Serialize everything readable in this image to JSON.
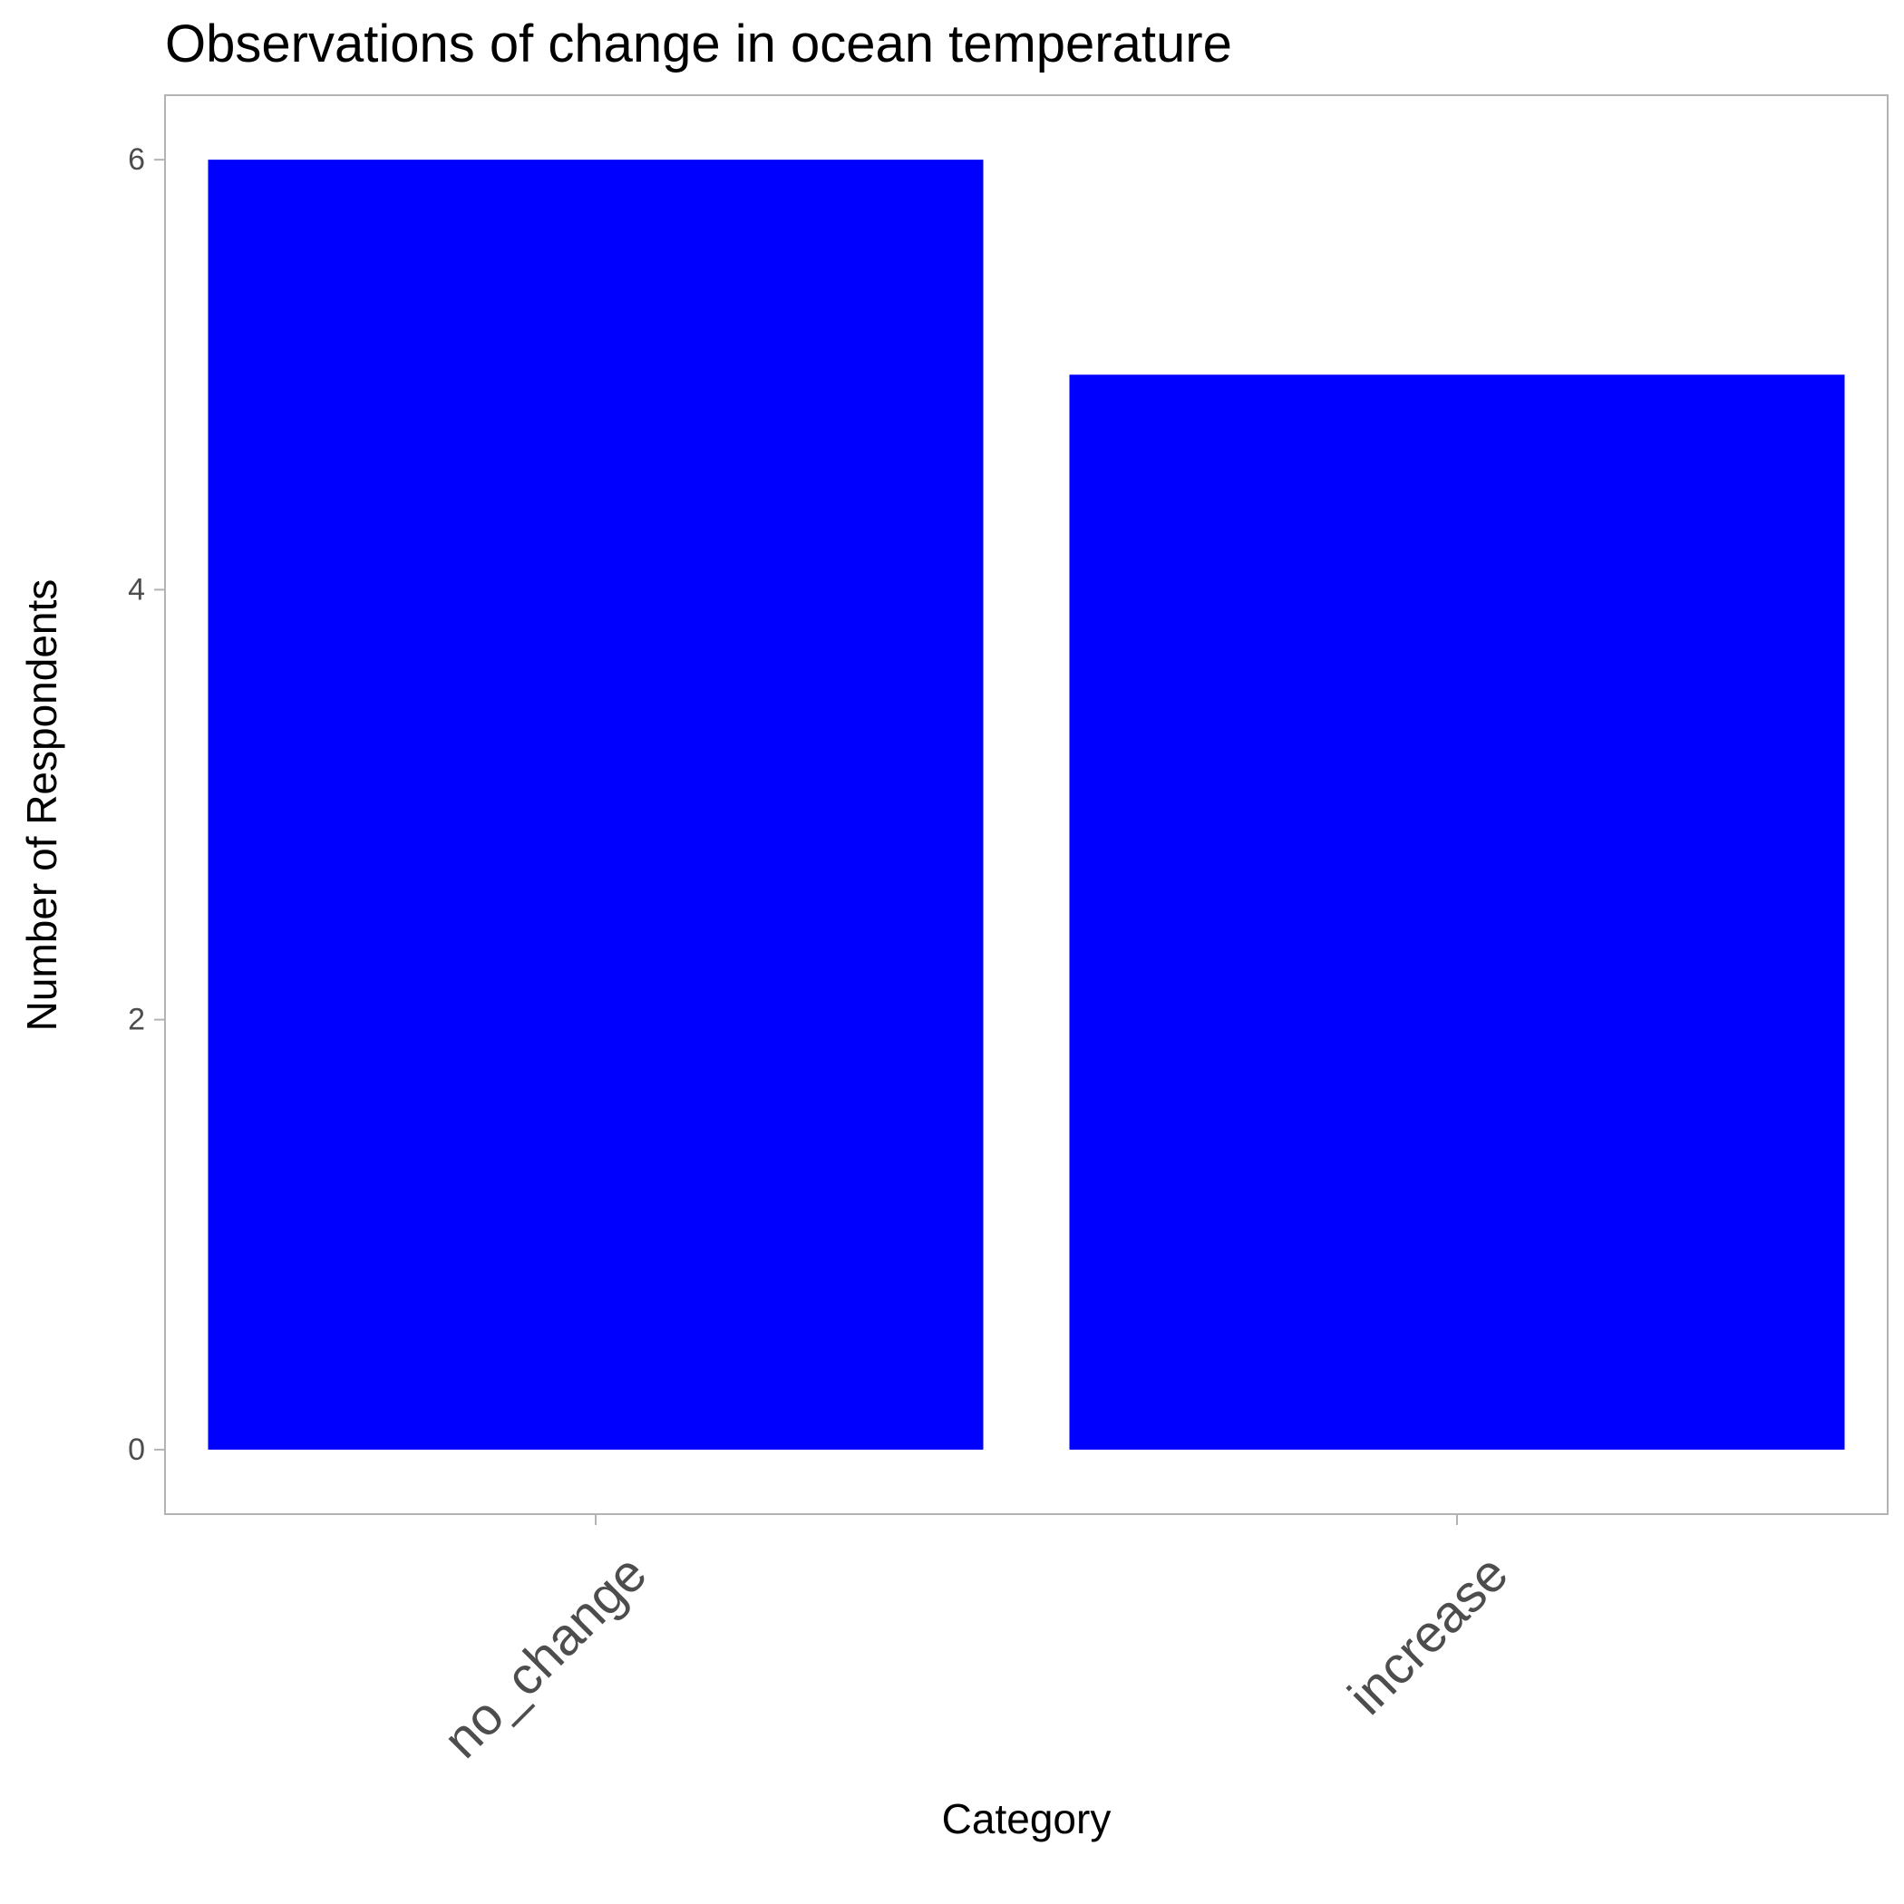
{
  "chart_data": {
    "type": "bar",
    "title": "Observations of change in ocean temperature",
    "xlabel": "Category",
    "ylabel": "Number of Respondents",
    "categories": [
      "no_change",
      "increase"
    ],
    "values": [
      6,
      5
    ],
    "ylim": [
      -0.3,
      6.3
    ],
    "yticks": [
      0,
      2,
      4,
      6
    ],
    "bar_color": "#0000ff",
    "panel_border_color": "#b3b3b3",
    "tick_color": "#b3b3b3",
    "grid": false,
    "legend": "none"
  }
}
